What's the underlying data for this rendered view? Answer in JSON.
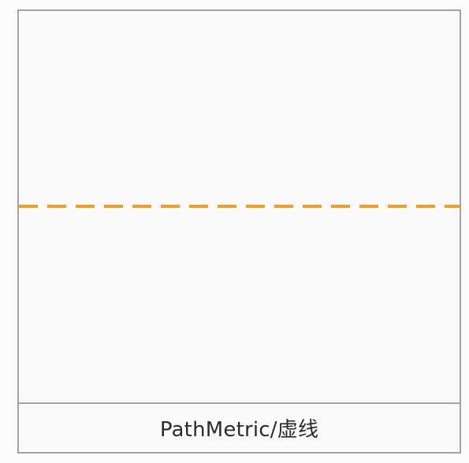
{
  "demo": {
    "caption": "PathMetric/虚线",
    "dashed_line_color": "#f0a027",
    "frame_border_color": "#a3a3a3"
  }
}
